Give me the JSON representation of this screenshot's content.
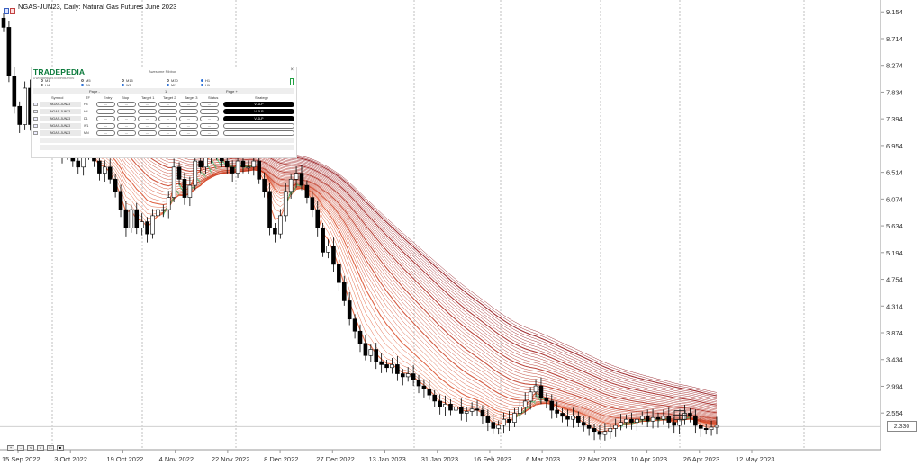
{
  "chart_title": "NGAS-JUN23, Daily:  Natural Gas Futures June 2023",
  "colors": {
    "grid": "#b0b0b0",
    "bull_candle": "#ffffff",
    "bear_candle": "#000000",
    "ribbon_slow": "#8b0a12",
    "ribbon_fast": "#e8562a",
    "ribbon_green": "#2fbf71",
    "axis_text": "#333333"
  },
  "icons": {
    "chart_type": "chart-window-icon",
    "close": "close-icon"
  },
  "chart_data": {
    "type": "candlestick",
    "title": "NGAS-JUN23, Daily:  Natural Gas Futures June 2023",
    "y_ticks": [
      "9.154",
      "8.714",
      "8.274",
      "7.834",
      "7.394",
      "6.954",
      "6.514",
      "6.074",
      "5.634",
      "5.194",
      "4.754",
      "4.314",
      "3.874",
      "3.434",
      "2.994",
      "2.554"
    ],
    "ylim": [
      1.95,
      9.35
    ],
    "x_ticks": [
      "15 Sep 2022",
      "3 Oct 2022",
      "19 Oct 2022",
      "4 Nov 2022",
      "22 Nov 2022",
      "8 Dec 2022",
      "27 Dec 2022",
      "13 Jan 2023",
      "31 Jan 2023",
      "16 Feb 2023",
      "6 Mar 2023",
      "22 Mar 2023",
      "10 Apr 2023",
      "26 Apr 2023",
      "12 May 2023"
    ],
    "current_price": "2.330",
    "price_line": 2.33,
    "grid": "vertical period separators",
    "close_series": [
      8.9,
      8.1,
      7.6,
      7.3,
      7.9,
      7.3,
      7.5,
      7.1,
      6.9,
      7.0,
      6.9,
      6.8,
      6.9,
      6.7,
      6.6,
      6.8,
      6.9,
      6.7,
      6.5,
      6.6,
      6.4,
      6.2,
      5.9,
      5.6,
      5.9,
      5.6,
      5.7,
      5.5,
      5.8,
      5.9,
      5.9,
      6.1,
      6.6,
      6.4,
      6.1,
      6.3,
      6.7,
      6.6,
      6.9,
      6.8,
      6.8,
      6.7,
      6.6,
      6.5,
      6.7,
      6.6,
      6.6,
      6.7,
      6.4,
      6.2,
      5.6,
      5.5,
      5.8,
      6.2,
      6.4,
      6.5,
      6.3,
      6.1,
      5.9,
      5.6,
      5.2,
      5.3,
      5.0,
      4.7,
      4.4,
      4.1,
      3.9,
      3.7,
      3.5,
      3.6,
      3.4,
      3.35,
      3.3,
      3.35,
      3.2,
      3.15,
      3.2,
      3.1,
      3.0,
      2.95,
      2.85,
      2.75,
      2.65,
      2.7,
      2.6,
      2.65,
      2.55,
      2.58,
      2.62,
      2.6,
      2.5,
      2.4,
      2.3,
      2.35,
      2.45,
      2.4,
      2.55,
      2.65,
      2.75,
      2.9,
      3.0,
      2.8,
      2.75,
      2.6,
      2.55,
      2.5,
      2.45,
      2.5,
      2.4,
      2.35,
      2.3,
      2.25,
      2.2,
      2.25,
      2.3,
      2.35,
      2.4,
      2.45,
      2.4,
      2.45,
      2.5,
      2.42,
      2.48,
      2.45,
      2.5,
      2.4,
      2.35,
      2.45,
      2.55,
      2.5,
      2.35,
      2.3,
      2.28,
      2.32,
      2.35
    ],
    "ribbon_end_values": [
      2.38,
      2.52
    ]
  },
  "panel": {
    "logo": "TRADEPEDIA",
    "logo_sub": "A WORDPRESS CORPORATION",
    "title": "Awesome Ribbon",
    "close": "×",
    "timeframes_row1": [
      "M1",
      "M5",
      "M15",
      "M30",
      "H1"
    ],
    "timeframes_row2": [
      "H4",
      "D1",
      "W1",
      "MN",
      "H1"
    ],
    "selected_row1": [
      4
    ],
    "selected_row2": [
      1,
      2,
      3,
      4
    ],
    "page_prev": "Page -",
    "page_num": "1",
    "page_next": "Page +",
    "headers": [
      "Symbol",
      "TF",
      "Entry",
      "Stop",
      "Target 1",
      "Target 2",
      "Target 3",
      "Status",
      "Strategy"
    ],
    "rows": [
      {
        "symbol": "NGAS-JUN23",
        "tf": "H4",
        "entry": "---",
        "stop": "---",
        "t1": "---",
        "t2": "---",
        "t3": "---",
        "status": "---",
        "strategy": "V-SLP",
        "active": true
      },
      {
        "symbol": "NGAS-JUN23",
        "tf": "H4",
        "entry": "---",
        "stop": "---",
        "t1": "---",
        "t2": "---",
        "t3": "---",
        "status": "---",
        "strategy": "V-SLP",
        "active": true
      },
      {
        "symbol": "NGAS-JUN23",
        "tf": "D1",
        "entry": "---",
        "stop": "---",
        "t1": "---",
        "t2": "---",
        "t3": "---",
        "status": "---",
        "strategy": "V-SLP",
        "active": true
      },
      {
        "symbol": "NGAS-JUN23",
        "tf": "W1",
        "entry": "---",
        "stop": "---",
        "t1": "---",
        "t2": "---",
        "t3": "---",
        "status": "---",
        "strategy": "",
        "active": false
      },
      {
        "symbol": "NGAS-JUN23",
        "tf": "MN",
        "entry": "---",
        "stop": "---",
        "t1": "---",
        "t2": "---",
        "t3": "---",
        "status": "---",
        "strategy": "",
        "active": false
      }
    ]
  },
  "bottom_controls": [
    "+",
    "-",
    "<",
    ">",
    "□",
    "■"
  ]
}
